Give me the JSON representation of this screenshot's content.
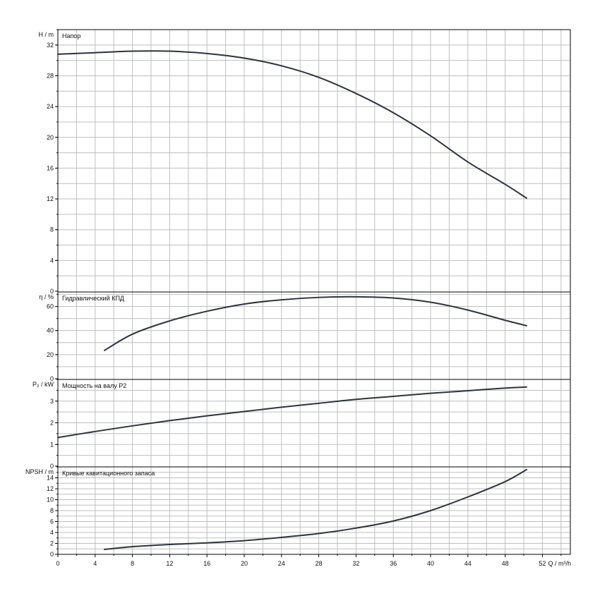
{
  "chart_data": {
    "type": "line",
    "x_axis": {
      "label": "Q / m³/h",
      "range": [
        0,
        55
      ],
      "ticks": [
        0,
        4,
        8,
        12,
        16,
        20,
        24,
        28,
        32,
        36,
        40,
        44,
        48,
        52
      ],
      "tick_labels": [
        "0",
        "4",
        "8",
        "12",
        "16",
        "20",
        "24",
        "28",
        "32",
        "36",
        "40",
        "44",
        "48",
        "52"
      ]
    },
    "grid": true,
    "panels": [
      {
        "id": "head",
        "title": "Напор",
        "ylabel": "H / m",
        "ylim": [
          0,
          34
        ],
        "yticks": [
          0,
          4,
          8,
          12,
          16,
          20,
          24,
          28,
          32
        ],
        "ytick_labels": [
          "0",
          "4",
          "8",
          "12",
          "16",
          "20",
          "24",
          "28",
          "32"
        ],
        "series": [
          {
            "x": [
              0,
              4,
              8,
              12,
              16,
              20,
              24,
              28,
              32,
              36,
              40,
              44,
              48,
              50.3
            ],
            "y": [
              30.8,
              31.0,
              31.2,
              31.2,
              30.9,
              30.3,
              29.3,
              27.8,
              25.7,
              23.2,
              20.2,
              16.8,
              13.9,
              12.1
            ]
          }
        ]
      },
      {
        "id": "efficiency",
        "title": "Гидравлический КПД",
        "ylabel": "η / %",
        "ylim": [
          0,
          72
        ],
        "yticks": [
          0,
          20,
          40,
          60
        ],
        "ytick_labels": [
          "0",
          "20",
          "40",
          "60"
        ],
        "series": [
          {
            "x": [
              5,
              8,
              12,
              16,
              20,
              24,
              28,
              32,
              36,
              40,
              44,
              48,
              50.3
            ],
            "y": [
              23.5,
              37,
              48,
              56,
              62,
              65.5,
              67.5,
              68,
              67,
              63.5,
              57,
              48.5,
              44
            ]
          }
        ]
      },
      {
        "id": "power",
        "title": "Мощность на валу P2",
        "ylabel": "P₂ / kW",
        "ylim": [
          0,
          4.0
        ],
        "yticks": [
          0,
          1,
          2,
          3
        ],
        "ytick_labels": [
          "0",
          "1",
          "2",
          "3"
        ],
        "series": [
          {
            "x": [
              0,
              4,
              8,
              12,
              16,
              20,
              24,
              28,
              32,
              36,
              40,
              44,
              48,
              50.3
            ],
            "y": [
              1.32,
              1.6,
              1.86,
              2.1,
              2.32,
              2.52,
              2.72,
              2.9,
              3.08,
              3.22,
              3.36,
              3.48,
              3.6,
              3.65
            ]
          }
        ]
      },
      {
        "id": "npsh",
        "title": "Кривые кавитационного запаса",
        "ylabel": "NPSH / m",
        "ylim": [
          0,
          16
        ],
        "yticks": [
          0,
          2,
          4,
          6,
          8,
          10,
          12,
          14
        ],
        "ytick_labels": [
          "0",
          "2",
          "4",
          "6",
          "8",
          "10",
          "12",
          "14"
        ],
        "series": [
          {
            "x": [
              5,
              8,
              12,
              16,
              20,
              24,
              28,
              32,
              36,
              40,
              44,
              48,
              50.3
            ],
            "y": [
              0.9,
              1.4,
              1.8,
              2.1,
              2.5,
              3.1,
              3.8,
              4.8,
              6.1,
              8.0,
              10.5,
              13.3,
              15.5
            ]
          }
        ]
      }
    ],
    "colors": {
      "line": "#2d3340",
      "grid": "#bfbfbf",
      "frame": "#000000"
    }
  }
}
